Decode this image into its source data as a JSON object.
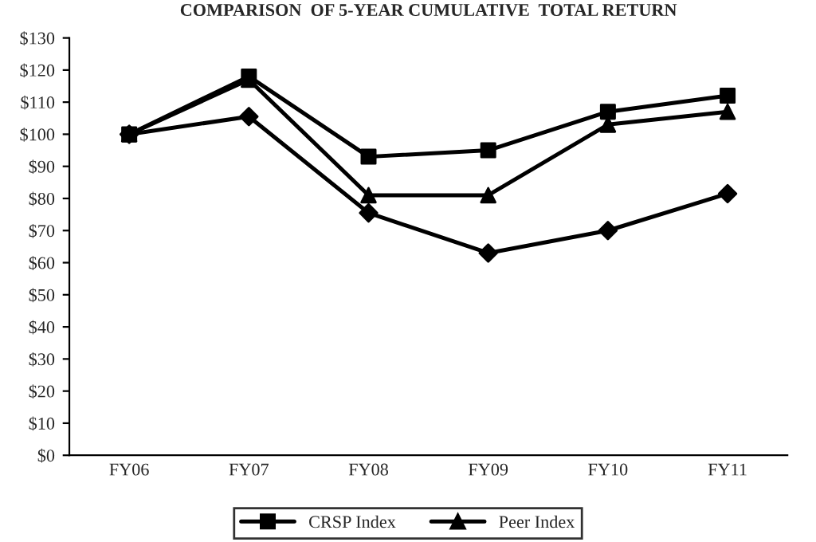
{
  "chart_data": {
    "type": "line",
    "title": "COMPARISON  OF 5-YEAR CUMULATIVE  TOTAL RETURN",
    "categories": [
      "FY06",
      "FY07",
      "FY08",
      "FY09",
      "FY10",
      "FY11"
    ],
    "series": [
      {
        "color": "#000000",
        "marker": "diamond",
        "values": [
          100,
          105.5,
          75.5,
          63,
          70,
          81.5
        ]
      },
      {
        "name": "CRSP Index",
        "color": "#000000",
        "marker": "square",
        "values": [
          100,
          118,
          93,
          95,
          107,
          112
        ]
      },
      {
        "name": "Peer Index",
        "color": "#000000",
        "marker": "triangle",
        "values": [
          100,
          117,
          81,
          81,
          103,
          107
        ]
      }
    ],
    "ylim": [
      0,
      130
    ],
    "yticks": [
      {
        "value": 0,
        "label": "$0"
      },
      {
        "value": 10,
        "label": "$10"
      },
      {
        "value": 20,
        "label": "$20"
      },
      {
        "value": 30,
        "label": "$30"
      },
      {
        "value": 40,
        "label": "$40"
      },
      {
        "value": 50,
        "label": "$50"
      },
      {
        "value": 60,
        "label": "$60"
      },
      {
        "value": 70,
        "label": "$70"
      },
      {
        "value": 80,
        "label": "$80"
      },
      {
        "value": 90,
        "label": "$90"
      },
      {
        "value": 100,
        "label": "$100"
      },
      {
        "value": 110,
        "label": "$110"
      },
      {
        "value": 120,
        "label": "$120"
      },
      {
        "value": 130,
        "label": "$130"
      }
    ],
    "grid": false,
    "legend": "bottom",
    "line_style": "solid"
  }
}
